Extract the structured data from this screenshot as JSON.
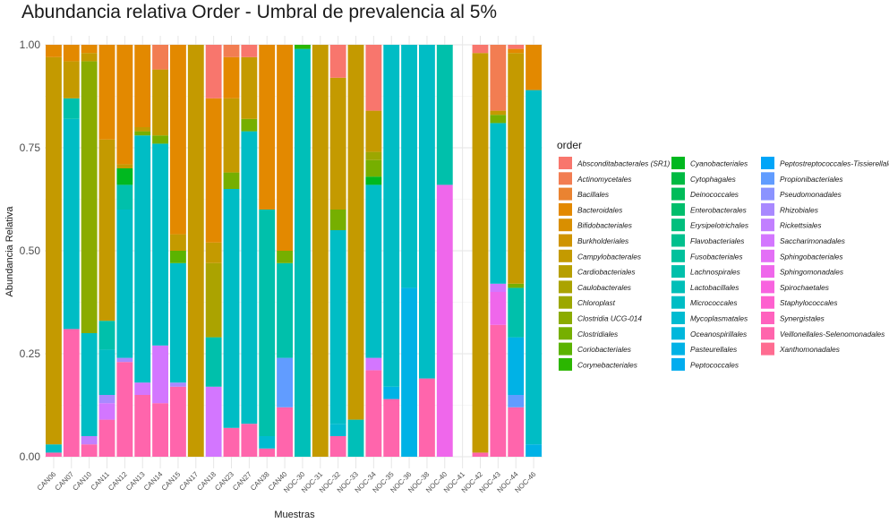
{
  "chart_data": {
    "type": "bar",
    "title": "Abundancia relativa Order - Umbral de prevalencia al 5%",
    "xlabel": "Muestras",
    "ylabel": "Abundancia Relativa",
    "ylim": [
      0,
      1
    ],
    "yticks": [
      "0.00",
      "0.25",
      "0.50",
      "0.75",
      "1.00"
    ],
    "ytick_values": [
      0,
      0.25,
      0.5,
      0.75,
      1
    ],
    "grid": true,
    "stacked": true,
    "legend_title": "order",
    "legend_position": "right",
    "orders": [
      {
        "name": "Absconditabacterales (SR1)",
        "color": "#F8766D"
      },
      {
        "name": "Actinomycetales",
        "color": "#F27D52"
      },
      {
        "name": "Bacillales",
        "color": "#EA8331"
      },
      {
        "name": "Bacteroidales",
        "color": "#E38900"
      },
      {
        "name": "Bifidobacteriales",
        "color": "#D98F00"
      },
      {
        "name": "Burkholderiales",
        "color": "#CF9400"
      },
      {
        "name": "Campylobacterales",
        "color": "#C49A00"
      },
      {
        "name": "Cardiobacteriales",
        "color": "#B79F00"
      },
      {
        "name": "Caulobacterales",
        "color": "#ABA300"
      },
      {
        "name": "Chloroplast",
        "color": "#9CA700"
      },
      {
        "name": "Clostridia UCG-014",
        "color": "#8BAB00"
      },
      {
        "name": "Clostridiales",
        "color": "#76AF00"
      },
      {
        "name": "Coriobacteriales",
        "color": "#5BB300"
      },
      {
        "name": "Corynebacteriales",
        "color": "#2BB600"
      },
      {
        "name": "Cyanobacteriales",
        "color": "#00B81F"
      },
      {
        "name": "Cytophagales",
        "color": "#00BA42"
      },
      {
        "name": "Deinococcales",
        "color": "#00BC59"
      },
      {
        "name": "Enterobacterales",
        "color": "#00BE6C"
      },
      {
        "name": "Erysipelotrichales",
        "color": "#00BF7D"
      },
      {
        "name": "Flavobacteriales",
        "color": "#00C08D"
      },
      {
        "name": "Fusobacteriales",
        "color": "#00C19C"
      },
      {
        "name": "Lachnospirales",
        "color": "#00C0AB"
      },
      {
        "name": "Lactobacillales",
        "color": "#00BFB8"
      },
      {
        "name": "Micrococcales",
        "color": "#00BDC5"
      },
      {
        "name": "Mycoplasmatales",
        "color": "#00BBD1"
      },
      {
        "name": "Oceanospirillales",
        "color": "#00B7DC"
      },
      {
        "name": "Pasteurellales",
        "color": "#00B2E6"
      },
      {
        "name": "Peptococcales",
        "color": "#00ACEF"
      },
      {
        "name": "Peptostreptococcales-Tissierellales",
        "color": "#00A5F8"
      },
      {
        "name": "Propionibacteriales",
        "color": "#619CFF"
      },
      {
        "name": "Pseudomonadales",
        "color": "#8B93FF"
      },
      {
        "name": "Rhizobiales",
        "color": "#A989FF"
      },
      {
        "name": "Rickettsiales",
        "color": "#C17FFF"
      },
      {
        "name": "Saccharimonadales",
        "color": "#D376FF"
      },
      {
        "name": "Sphingobacteriales",
        "color": "#E36FF6"
      },
      {
        "name": "Sphingomonadales",
        "color": "#EF67EB"
      },
      {
        "name": "Spirochaetales",
        "color": "#F863DF"
      },
      {
        "name": "Staphylococcales",
        "color": "#FE61CF"
      },
      {
        "name": "Synergistales",
        "color": "#FF62BE"
      },
      {
        "name": "Veillonellales-Selenomonadales",
        "color": "#FF65AC"
      },
      {
        "name": "Xanthomonadales",
        "color": "#FF6C91"
      }
    ],
    "samples": [
      {
        "name": "CAN06",
        "segments": [
          {
            "order": "Veillonellales-Selenomonadales",
            "value": 0.01
          },
          {
            "order": "Micrococcales",
            "value": 0.02
          },
          {
            "order": "Campylobacterales",
            "value": 0.94
          },
          {
            "order": "Bacteroidales",
            "value": 0.03
          }
        ]
      },
      {
        "name": "CAN07",
        "segments": [
          {
            "order": "Veillonellales-Selenomonadales",
            "value": 0.31
          },
          {
            "order": "Micrococcales",
            "value": 0.51
          },
          {
            "order": "Lachnospirales",
            "value": 0.05
          },
          {
            "order": "Campylobacterales",
            "value": 0.09
          },
          {
            "order": "Bacteroidales",
            "value": 0.04
          }
        ]
      },
      {
        "name": "CAN10",
        "segments": [
          {
            "order": "Veillonellales-Selenomonadales",
            "value": 0.03
          },
          {
            "order": "Rickettsiales",
            "value": 0.02
          },
          {
            "order": "Micrococcales",
            "value": 0.25
          },
          {
            "order": "Clostridia UCG-014",
            "value": 0.66
          },
          {
            "order": "Campylobacterales",
            "value": 0.02
          },
          {
            "order": "Bacteroidales",
            "value": 0.02
          }
        ]
      },
      {
        "name": "CAN11",
        "segments": [
          {
            "order": "Veillonellales-Selenomonadales",
            "value": 0.09
          },
          {
            "order": "Saccharimonadales",
            "value": 0.04
          },
          {
            "order": "Rhizobiales",
            "value": 0.02
          },
          {
            "order": "Micrococcales",
            "value": 0.11
          },
          {
            "order": "Lachnospirales",
            "value": 0.07
          },
          {
            "order": "Campylobacterales",
            "value": 0.44
          },
          {
            "order": "Bacteroidales",
            "value": 0.23
          }
        ]
      },
      {
        "name": "CAN12",
        "segments": [
          {
            "order": "Veillonellales-Selenomonadales",
            "value": 0.23
          },
          {
            "order": "Rhizobiales",
            "value": 0.01
          },
          {
            "order": "Micrococcales",
            "value": 0.36
          },
          {
            "order": "Lachnospirales",
            "value": 0.06
          },
          {
            "order": "Cyanobacteriales",
            "value": 0.04
          },
          {
            "order": "Campylobacterales",
            "value": 0.01
          },
          {
            "order": "Bacteroidales",
            "value": 0.29
          }
        ]
      },
      {
        "name": "CAN13",
        "segments": [
          {
            "order": "Veillonellales-Selenomonadales",
            "value": 0.15
          },
          {
            "order": "Saccharimonadales",
            "value": 0.03
          },
          {
            "order": "Micrococcales",
            "value": 0.6
          },
          {
            "order": "Clostridiales",
            "value": 0.01
          },
          {
            "order": "Campylobacterales",
            "value": 0.01
          },
          {
            "order": "Bacteroidales",
            "value": 0.2
          }
        ]
      },
      {
        "name": "CAN14",
        "segments": [
          {
            "order": "Veillonellales-Selenomonadales",
            "value": 0.13
          },
          {
            "order": "Saccharimonadales",
            "value": 0.14
          },
          {
            "order": "Micrococcales",
            "value": 0.49
          },
          {
            "order": "Clostridiales",
            "value": 0.02
          },
          {
            "order": "Campylobacterales",
            "value": 0.16
          },
          {
            "order": "Actinomycetales",
            "value": 0.06
          }
        ]
      },
      {
        "name": "CAN15",
        "segments": [
          {
            "order": "Veillonellales-Selenomonadales",
            "value": 0.17
          },
          {
            "order": "Rhizobiales",
            "value": 0.01
          },
          {
            "order": "Micrococcales",
            "value": 0.29
          },
          {
            "order": "Coriobacteriales",
            "value": 0.03
          },
          {
            "order": "Campylobacterales",
            "value": 0.04
          },
          {
            "order": "Bacteroidales",
            "value": 0.46
          }
        ]
      },
      {
        "name": "CAN17",
        "segments": [
          {
            "order": "Campylobacterales",
            "value": 1.0
          }
        ]
      },
      {
        "name": "CAN18",
        "segments": [
          {
            "order": "Saccharimonadales",
            "value": 0.17
          },
          {
            "order": "Lachnospirales",
            "value": 0.12
          },
          {
            "order": "Caulobacterales",
            "value": 0.18
          },
          {
            "order": "Campylobacterales",
            "value": 0.05
          },
          {
            "order": "Bacteroidales",
            "value": 0.35
          },
          {
            "order": "Absconditabacterales (SR1)",
            "value": 0.13
          }
        ]
      },
      {
        "name": "CAN23",
        "segments": [
          {
            "order": "Veillonellales-Selenomonadales",
            "value": 0.07
          },
          {
            "order": "Micrococcales",
            "value": 0.58
          },
          {
            "order": "Clostridiales",
            "value": 0.04
          },
          {
            "order": "Campylobacterales",
            "value": 0.18
          },
          {
            "order": "Bacteroidales",
            "value": 0.1
          },
          {
            "order": "Actinomycetales",
            "value": 0.03
          }
        ]
      },
      {
        "name": "CAN27",
        "segments": [
          {
            "order": "Veillonellales-Selenomonadales",
            "value": 0.08
          },
          {
            "order": "Micrococcales",
            "value": 0.71
          },
          {
            "order": "Clostridiales",
            "value": 0.03
          },
          {
            "order": "Campylobacterales",
            "value": 0.15
          },
          {
            "order": "Absconditabacterales (SR1)",
            "value": 0.03
          }
        ]
      },
      {
        "name": "CAN38",
        "segments": [
          {
            "order": "Veillonellales-Selenomonadales",
            "value": 0.02
          },
          {
            "order": "Mycoplasmatales",
            "value": 0.03
          },
          {
            "order": "Lachnospirales",
            "value": 0.55
          },
          {
            "order": "Bacteroidales",
            "value": 0.4
          }
        ]
      },
      {
        "name": "CAN40",
        "segments": [
          {
            "order": "Veillonellales-Selenomonadales",
            "value": 0.12
          },
          {
            "order": "Propionibacteriales",
            "value": 0.12
          },
          {
            "order": "Lachnospirales",
            "value": 0.23
          },
          {
            "order": "Clostridiales",
            "value": 0.03
          },
          {
            "order": "Bacteroidales",
            "value": 0.5
          }
        ]
      },
      {
        "name": "NOC-30",
        "segments": [
          {
            "order": "Lactobacillales",
            "value": 0.99
          },
          {
            "order": "Corynebacteriales",
            "value": 0.01
          }
        ]
      },
      {
        "name": "NOC-31",
        "segments": [
          {
            "order": "Campylobacterales",
            "value": 1.0
          }
        ]
      },
      {
        "name": "NOC-32",
        "segments": [
          {
            "order": "Veillonellales-Selenomonadales",
            "value": 0.05
          },
          {
            "order": "Mycoplasmatales",
            "value": 0.03
          },
          {
            "order": "Micrococcales",
            "value": 0.47
          },
          {
            "order": "Clostridiales",
            "value": 0.05
          },
          {
            "order": "Campylobacterales",
            "value": 0.32
          },
          {
            "order": "Absconditabacterales (SR1)",
            "value": 0.08
          }
        ]
      },
      {
        "name": "NOC-33",
        "segments": [
          {
            "order": "Lactobacillales",
            "value": 0.09
          },
          {
            "order": "Campylobacterales",
            "value": 0.91
          }
        ]
      },
      {
        "name": "NOC-34",
        "segments": [
          {
            "order": "Veillonellales-Selenomonadales",
            "value": 0.21
          },
          {
            "order": "Saccharimonadales",
            "value": 0.03
          },
          {
            "order": "Micrococcales",
            "value": 0.42
          },
          {
            "order": "Cyanobacteriales",
            "value": 0.02
          },
          {
            "order": "Clostridiales",
            "value": 0.04
          },
          {
            "order": "Chloroplast",
            "value": 0.02
          },
          {
            "order": "Campylobacterales",
            "value": 0.1
          },
          {
            "order": "Absconditabacterales (SR1)",
            "value": 0.16
          }
        ]
      },
      {
        "name": "NOC-35",
        "segments": [
          {
            "order": "Veillonellales-Selenomonadales",
            "value": 0.14
          },
          {
            "order": "Pasteurellales",
            "value": 0.03
          },
          {
            "order": "Micrococcales",
            "value": 0.83
          }
        ]
      },
      {
        "name": "NOC-36",
        "segments": [
          {
            "order": "Pasteurellales",
            "value": 0.41
          },
          {
            "order": "Micrococcales",
            "value": 0.59
          }
        ]
      },
      {
        "name": "NOC-38",
        "segments": [
          {
            "order": "Veillonellales-Selenomonadales",
            "value": 0.19
          },
          {
            "order": "Micrococcales",
            "value": 0.81
          }
        ]
      },
      {
        "name": "NOC-40",
        "segments": [
          {
            "order": "Sphingomonadales",
            "value": 0.66
          },
          {
            "order": "Lachnospirales",
            "value": 0.34
          }
        ]
      },
      {
        "name": "NOC-41",
        "segments": []
      },
      {
        "name": "NOC-42",
        "segments": [
          {
            "order": "Veillonellales-Selenomonadales",
            "value": 0.01
          },
          {
            "order": "Campylobacterales",
            "value": 0.97
          },
          {
            "order": "Absconditabacterales (SR1)",
            "value": 0.02
          }
        ]
      },
      {
        "name": "NOC-43",
        "segments": [
          {
            "order": "Veillonellales-Selenomonadales",
            "value": 0.32
          },
          {
            "order": "Sphingomonadales",
            "value": 0.08
          },
          {
            "order": "Saccharimonadales",
            "value": 0.02
          },
          {
            "order": "Micrococcales",
            "value": 0.39
          },
          {
            "order": "Clostridiales",
            "value": 0.02
          },
          {
            "order": "Campylobacterales",
            "value": 0.01
          },
          {
            "order": "Actinomycetales",
            "value": 0.16
          }
        ]
      },
      {
        "name": "NOC-44",
        "segments": [
          {
            "order": "Veillonellales-Selenomonadales",
            "value": 0.12
          },
          {
            "order": "Propionibacteriales",
            "value": 0.03
          },
          {
            "order": "Pasteurellales",
            "value": 0.14
          },
          {
            "order": "Lachnospirales",
            "value": 0.12
          },
          {
            "order": "Clostridiales",
            "value": 0.01
          },
          {
            "order": "Campylobacterales",
            "value": 0.56
          },
          {
            "order": "Bacteroidales",
            "value": 0.01
          },
          {
            "order": "Absconditabacterales (SR1)",
            "value": 0.01
          }
        ]
      },
      {
        "name": "NOC-46",
        "segments": [
          {
            "order": "Pasteurellales",
            "value": 0.03
          },
          {
            "order": "Micrococcales",
            "value": 0.86
          },
          {
            "order": "Bacteroidales",
            "value": 0.11
          }
        ]
      }
    ]
  }
}
